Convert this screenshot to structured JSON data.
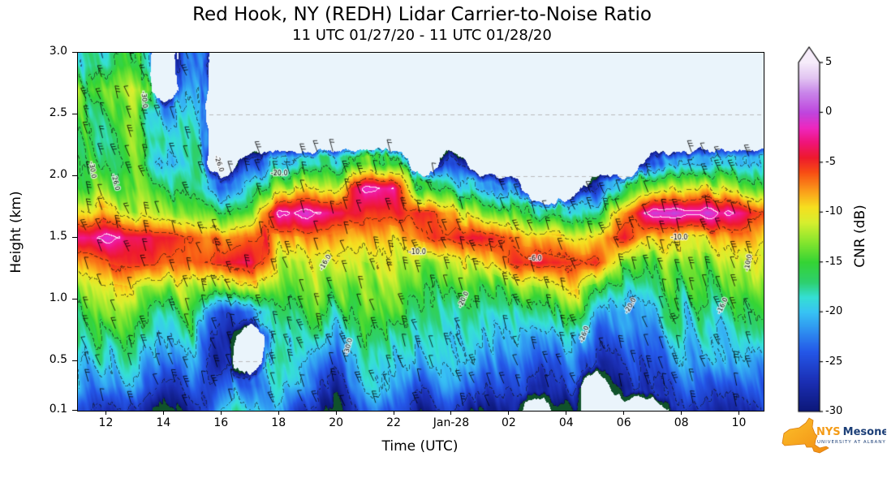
{
  "figure": {
    "title": "Red Hook, NY (REDH) Lidar Carrier-to-Noise Ratio",
    "subtitle": "11 UTC 01/27/20 - 11 UTC 01/28/20"
  },
  "axes": {
    "xlabel": "Time (UTC)",
    "ylabel": "Height (km)",
    "x_range": [
      11,
      34.83
    ],
    "y_range": [
      0.1,
      3.0
    ],
    "background": "#eaf4fb",
    "grid_color": "#bbbbbb",
    "grid_heights": [
      0.5,
      1.0,
      1.5,
      2.0,
      2.5
    ],
    "x_ticks": [
      {
        "value": 12,
        "label": "12"
      },
      {
        "value": 14,
        "label": "14"
      },
      {
        "value": 16,
        "label": "16"
      },
      {
        "value": 18,
        "label": "18"
      },
      {
        "value": 20,
        "label": "20"
      },
      {
        "value": 22,
        "label": "22"
      },
      {
        "value": 24,
        "label": "Jan-28"
      },
      {
        "value": 26,
        "label": "02"
      },
      {
        "value": 28,
        "label": "04"
      },
      {
        "value": 30,
        "label": "06"
      },
      {
        "value": 32,
        "label": "08"
      },
      {
        "value": 34,
        "label": "10"
      }
    ],
    "y_ticks": [
      {
        "value": 3.0,
        "label": "3.0"
      },
      {
        "value": 2.5,
        "label": "2.5"
      },
      {
        "value": 2.0,
        "label": "2.0"
      },
      {
        "value": 1.5,
        "label": "1.5"
      },
      {
        "value": 1.0,
        "label": "1.0"
      },
      {
        "value": 0.5,
        "label": "0.5"
      },
      {
        "value": 0.1,
        "label": "0.1"
      }
    ]
  },
  "colorbar": {
    "label": "CNR (dB)",
    "min": -30,
    "max": 5,
    "extend": "max",
    "ticks": [
      "5",
      "0",
      "-5",
      "-10",
      "-15",
      "-20",
      "-25",
      "-30"
    ],
    "under_color": "#10522b",
    "stops": [
      [
        -30,
        "#0c1778"
      ],
      [
        -27,
        "#1b2fb4"
      ],
      [
        -24,
        "#2457e8"
      ],
      [
        -22,
        "#2e8df0"
      ],
      [
        -20,
        "#38c4f4"
      ],
      [
        -18.5,
        "#35e0d4"
      ],
      [
        -17,
        "#2ed06e"
      ],
      [
        -15,
        "#35d435"
      ],
      [
        -13,
        "#86e62e"
      ],
      [
        -11,
        "#d8ef2f"
      ],
      [
        -9.5,
        "#f6e020"
      ],
      [
        -8,
        "#fba31b"
      ],
      [
        -6,
        "#f84e14"
      ],
      [
        -4.5,
        "#ee1a2e"
      ],
      [
        -3,
        "#f01478"
      ],
      [
        -1.5,
        "#ee28c0"
      ],
      [
        0,
        "#bf46de"
      ],
      [
        2,
        "#c986ea"
      ],
      [
        3.5,
        "#e3c6f2"
      ],
      [
        5,
        "#f6ecfa"
      ]
    ]
  },
  "logo": {
    "name_primary": "NYS",
    "name_secondary": "Mesonet",
    "tagline": "UNIVERSITY AT ALBANY",
    "state_color": "#f79b1b"
  },
  "chart_data": {
    "type": "heatmap",
    "title": "Red Hook, NY (REDH) Lidar Carrier-to-Noise Ratio",
    "subtitle": "11 UTC 01/27/20 - 11 UTC 01/28/20",
    "xlabel": "Time (UTC)",
    "ylabel": "Height (km)",
    "value_label": "CNR (dB)",
    "x_unit": "UTC hour (24+ = Jan 28)",
    "y_unit": "km",
    "x_range": [
      11,
      34.83
    ],
    "y_range": [
      0.1,
      3.0
    ],
    "x": [
      11,
      12,
      13,
      14,
      15,
      16,
      17,
      18,
      19,
      20,
      21,
      22,
      23,
      24,
      25,
      26,
      27,
      28,
      29,
      30,
      31,
      32,
      33,
      34,
      35
    ],
    "y": [
      0.1,
      0.3,
      0.5,
      0.7,
      0.9,
      1.1,
      1.3,
      1.5,
      1.7,
      1.9,
      2.1,
      2.3,
      2.5,
      2.7,
      2.9
    ],
    "values": [
      [
        -24,
        -27,
        -26,
        -31,
        -28,
        -20,
        -18,
        -22,
        -25,
        -31,
        -24,
        -26,
        -28,
        -27,
        -31,
        -28,
        null,
        -31,
        null,
        null,
        null,
        -28,
        -27,
        -28,
        -27
      ],
      [
        -20,
        -22,
        -21,
        -26,
        -24,
        -24,
        -22,
        -19,
        -20,
        -27,
        -20,
        -22,
        -25,
        -23,
        -26,
        -24,
        -27,
        -25,
        null,
        -28,
        -27,
        -25,
        -24,
        -25,
        -24
      ],
      [
        -18,
        -19,
        -19,
        -22,
        -21,
        -27,
        null,
        -17,
        -18,
        -24,
        -18,
        -20,
        -21,
        -20,
        -23,
        -22,
        -23,
        -22,
        -26,
        -26,
        -24,
        -22,
        -21,
        -22,
        -21
      ],
      [
        -16,
        -17,
        -16,
        -19,
        -18,
        -28,
        null,
        -18,
        -16,
        -22,
        -16,
        -18,
        -18,
        -19,
        -20,
        -20,
        -20,
        -19,
        -23,
        -23,
        -22,
        -20,
        -19,
        -19,
        -18
      ],
      [
        -15,
        -15,
        -14,
        -16,
        -16,
        -26,
        -24,
        -16,
        -15,
        -18,
        -14,
        -15,
        -16,
        -17,
        -18,
        -17,
        -16,
        -15,
        -18,
        -21,
        -19,
        -18,
        -17,
        -16,
        -16
      ],
      [
        -13,
        -12,
        -11,
        -12,
        -13,
        -14,
        -13,
        -14,
        -13,
        -15,
        -13,
        -13,
        -14,
        -15,
        -15,
        -13,
        -11,
        -10,
        -12,
        -17,
        -16,
        -15,
        -14,
        -14,
        -14
      ],
      [
        -8,
        -7,
        -5,
        -6,
        -7,
        -5,
        -4,
        -12,
        -11,
        -12,
        -11,
        -11,
        -12,
        -12,
        -10,
        -6,
        -4,
        -6,
        -5,
        -12,
        -13,
        -13,
        -12,
        -12,
        -12
      ],
      [
        -2,
        -2,
        -3,
        -4,
        -6,
        -8,
        -6,
        -8,
        -7,
        -8,
        -9,
        -9,
        -6,
        -5,
        -4,
        -7,
        -9,
        -11,
        -10,
        -4,
        -9,
        -10,
        -9,
        -8,
        -9
      ],
      [
        -9,
        -10,
        -11,
        -12,
        -13,
        -16,
        -14,
        -2,
        -1,
        -3,
        -6,
        -5,
        -4,
        -8,
        -12,
        -15,
        -18,
        -20,
        -17,
        -7,
        0,
        0,
        -1,
        -3,
        -6
      ],
      [
        -14,
        -15,
        -15,
        -17,
        -18,
        -24,
        -18,
        -12,
        -10,
        -11,
        -1,
        -2,
        -16,
        -17,
        -20,
        -24,
        null,
        null,
        -26,
        -16,
        -12,
        -11,
        -10,
        -13,
        -15
      ],
      [
        -16,
        -17,
        -16,
        -22,
        -20,
        null,
        -25,
        -20,
        -19,
        -18,
        -14,
        -15,
        null,
        -24,
        null,
        null,
        null,
        null,
        null,
        null,
        -24,
        -22,
        -20,
        -21,
        -20
      ],
      [
        -17,
        -18,
        -15,
        -20,
        -19,
        null,
        null,
        null,
        null,
        null,
        null,
        null,
        null,
        null,
        null,
        null,
        null,
        null,
        null,
        null,
        null,
        null,
        null,
        null,
        null
      ],
      [
        -16,
        -17,
        -14,
        -24,
        -18,
        null,
        null,
        null,
        null,
        null,
        null,
        null,
        null,
        null,
        null,
        null,
        null,
        null,
        null,
        null,
        null,
        null,
        null,
        null,
        null
      ],
      [
        -14,
        -16,
        -12,
        null,
        -19,
        null,
        null,
        null,
        null,
        null,
        null,
        null,
        null,
        null,
        null,
        null,
        null,
        null,
        null,
        null,
        null,
        null,
        null,
        null,
        null
      ],
      [
        -18,
        -20,
        -16,
        null,
        -22,
        null,
        null,
        null,
        null,
        null,
        null,
        null,
        null,
        null,
        null,
        null,
        null,
        null,
        null,
        null,
        null,
        null,
        null,
        null,
        null
      ]
    ],
    "contour_levels": [
      -30,
      -26,
      -20,
      -16,
      -10,
      -6
    ],
    "contour_levels_white": [
      -2
    ],
    "contour_labels": [
      {
        "level": -30,
        "t": 11.5,
        "h": 2.05,
        "rot": 80
      },
      {
        "level": -26,
        "t": 12.3,
        "h": 1.95,
        "rot": 75
      },
      {
        "level": -30,
        "t": 13.3,
        "h": 2.62,
        "rot": 85
      },
      {
        "level": -26,
        "t": 15.9,
        "h": 2.1,
        "rot": 70
      },
      {
        "level": -20,
        "t": 18.0,
        "h": 2.02,
        "rot": 0
      },
      {
        "level": -16,
        "t": 19.6,
        "h": 1.3,
        "rot": -60
      },
      {
        "level": -30,
        "t": 20.4,
        "h": 0.62,
        "rot": -75
      },
      {
        "level": -10,
        "t": 22.8,
        "h": 1.38,
        "rot": 0
      },
      {
        "level": -20,
        "t": 24.4,
        "h": 1.0,
        "rot": -65
      },
      {
        "level": -6,
        "t": 26.9,
        "h": 1.33,
        "rot": 0
      },
      {
        "level": -26,
        "t": 28.6,
        "h": 0.72,
        "rot": -70
      },
      {
        "level": -20,
        "t": 30.2,
        "h": 0.95,
        "rot": -60
      },
      {
        "level": -10,
        "t": 31.9,
        "h": 1.5,
        "rot": 0
      },
      {
        "level": -16,
        "t": 33.4,
        "h": 0.95,
        "rot": -65
      },
      {
        "level": -10,
        "t": 34.3,
        "h": 1.3,
        "rot": -80
      }
    ],
    "wind_barbs": {
      "direction_deg_from": 215,
      "speed_kt_range": [
        10,
        35
      ],
      "spacing_hours": 0.5,
      "spacing_km": 0.155
    }
  }
}
